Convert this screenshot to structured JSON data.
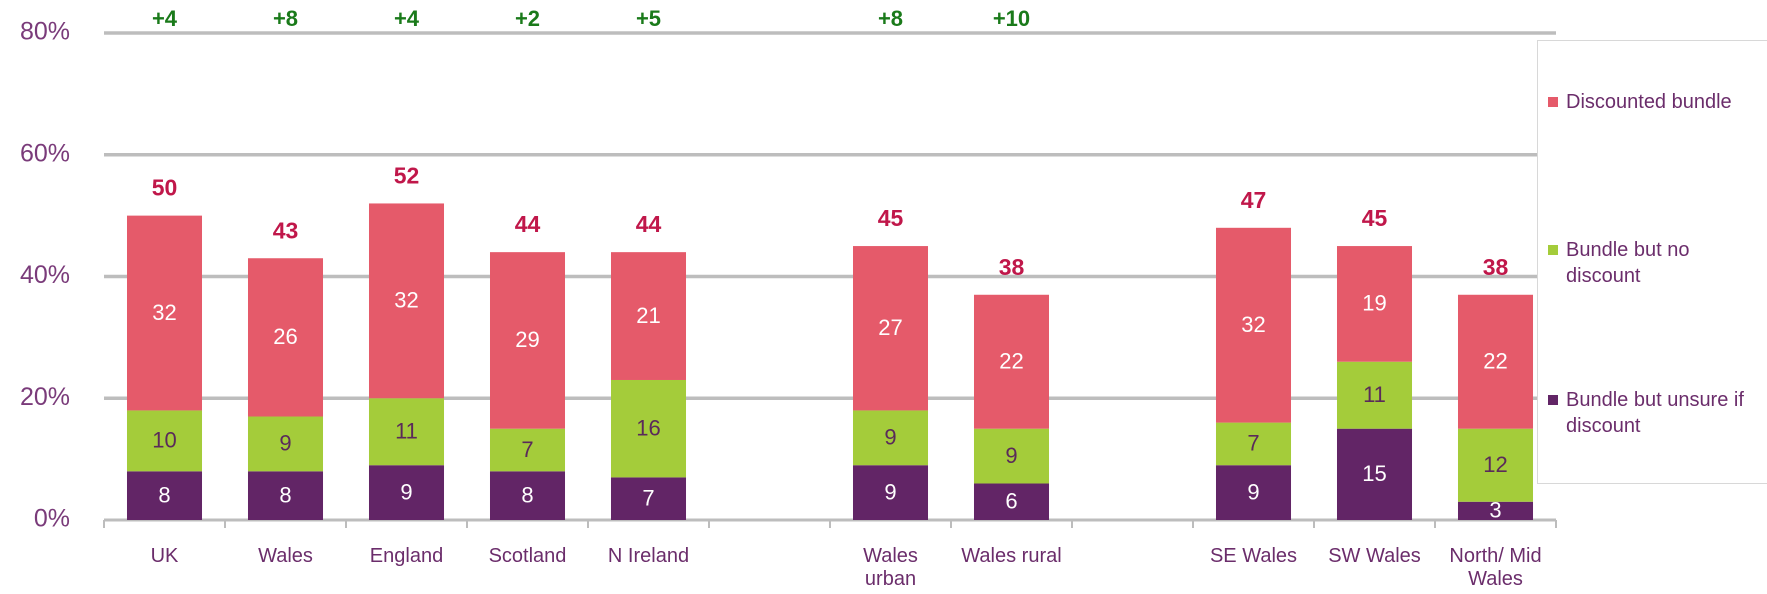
{
  "chart_data": {
    "type": "stacked-bar",
    "categories": [
      "UK",
      "Wales",
      "England",
      "Scotland",
      "N Ireland",
      null,
      "Wales urban",
      "Wales rural",
      null,
      "SE Wales",
      "SW Wales",
      "North/ Mid Wales"
    ],
    "series": [
      {
        "name": "Bundle but unsure if discount",
        "color": "#622566",
        "label_color": "#ffffff",
        "values": [
          8,
          8,
          9,
          8,
          7,
          null,
          9,
          6,
          null,
          9,
          15,
          3
        ]
      },
      {
        "name": "Bundle but no discount",
        "color": "#a4cc3a",
        "label_color": "#5a2a5a",
        "values": [
          10,
          9,
          11,
          7,
          16,
          null,
          9,
          9,
          null,
          7,
          11,
          12
        ]
      },
      {
        "name": "Discounted bundle",
        "color": "#e55a6a",
        "label_color": "#ffffff",
        "values": [
          32,
          26,
          32,
          29,
          21,
          null,
          27,
          22,
          null,
          32,
          19,
          22
        ]
      }
    ],
    "totals": [
      50,
      43,
      52,
      44,
      44,
      null,
      45,
      38,
      null,
      47,
      45,
      38
    ],
    "changes": [
      "+4",
      "+8",
      "+4",
      "+2",
      "+5",
      null,
      "+8",
      "+10",
      null,
      null,
      null,
      null
    ],
    "ylim": [
      0,
      80
    ],
    "yticks": [
      {
        "value": 0,
        "label": "0%"
      },
      {
        "value": 20,
        "label": "20%"
      },
      {
        "value": 40,
        "label": "40%"
      },
      {
        "value": 60,
        "label": "60%"
      },
      {
        "value": 80,
        "label": "80%"
      }
    ],
    "grid": true,
    "legend": "right"
  }
}
